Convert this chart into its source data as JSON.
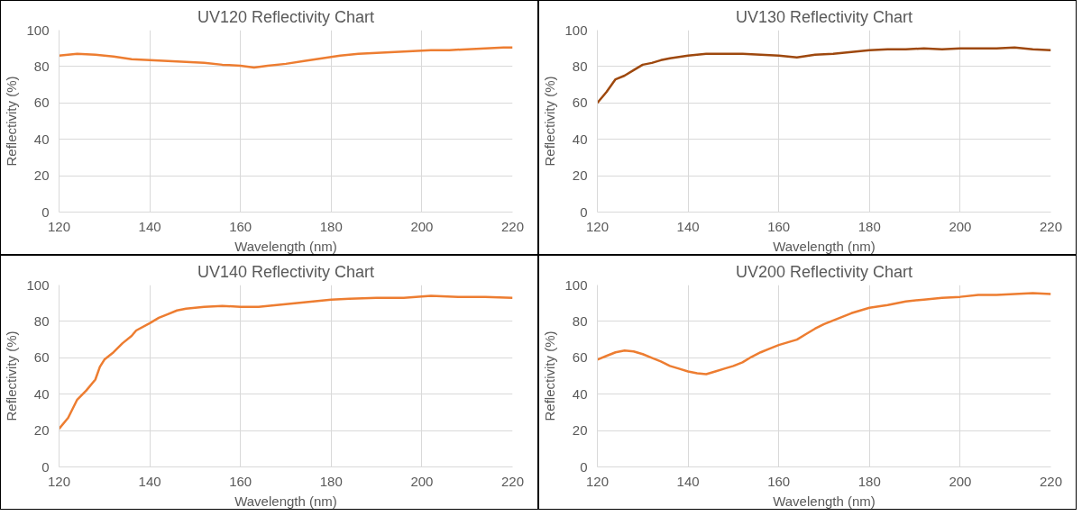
{
  "chart_data": [
    {
      "type": "line",
      "title": "UV120 Reflectivity Chart",
      "xlabel": "Wavelength (nm)",
      "ylabel": "Reflectivity (%)",
      "xlim": [
        120,
        220
      ],
      "xticks": [
        120,
        140,
        160,
        180,
        200,
        220
      ],
      "ylim": [
        0,
        100
      ],
      "yticks": [
        0,
        20,
        40,
        60,
        80,
        100
      ],
      "grid": true,
      "x": [
        120,
        124,
        128,
        132,
        136,
        140,
        144,
        148,
        152,
        156,
        160,
        163,
        166,
        170,
        174,
        178,
        182,
        186,
        190,
        194,
        198,
        202,
        206,
        210,
        214,
        218,
        220
      ],
      "series": [
        {
          "color": "#ed7d31",
          "values": [
            86,
            87,
            86.5,
            85.5,
            84,
            83.5,
            83,
            82.5,
            82,
            81,
            80.5,
            79.5,
            80.5,
            81.5,
            83,
            84.5,
            86,
            87,
            87.5,
            88,
            88.5,
            89,
            89,
            89.5,
            90,
            90.5,
            90.5
          ]
        }
      ]
    },
    {
      "type": "line",
      "title": "UV130 Reflectivity Chart",
      "xlabel": "Wavelength (nm)",
      "ylabel": "Reflectivity (%)",
      "xlim": [
        120,
        220
      ],
      "xticks": [
        120,
        140,
        160,
        180,
        200,
        220
      ],
      "ylim": [
        0,
        100
      ],
      "yticks": [
        0,
        20,
        40,
        60,
        80,
        100
      ],
      "grid": true,
      "x": [
        120,
        122,
        124,
        126,
        128,
        130,
        132,
        134,
        136,
        140,
        144,
        148,
        152,
        156,
        160,
        164,
        168,
        172,
        176,
        180,
        184,
        188,
        192,
        196,
        200,
        204,
        208,
        212,
        216,
        220
      ],
      "series": [
        {
          "color": "#9e480e",
          "values": [
            60,
            66,
            73,
            75,
            78,
            81,
            82,
            83.5,
            84.5,
            86,
            87,
            87,
            87,
            86.5,
            86,
            85,
            86.5,
            87,
            88,
            89,
            89.5,
            89.5,
            90,
            89.5,
            90,
            90,
            90,
            90.5,
            89.5,
            89
          ]
        }
      ]
    },
    {
      "type": "line",
      "title": "UV140 Reflectivity Chart",
      "xlabel": "Wavelength (nm)",
      "ylabel": "Reflectivity (%)",
      "xlim": [
        120,
        220
      ],
      "xticks": [
        120,
        140,
        160,
        180,
        200,
        220
      ],
      "ylim": [
        0,
        100
      ],
      "yticks": [
        0,
        20,
        40,
        60,
        80,
        100
      ],
      "grid": true,
      "x": [
        120,
        122,
        124,
        126,
        128,
        129,
        130,
        132,
        134,
        136,
        137,
        140,
        142,
        144,
        146,
        148,
        152,
        156,
        160,
        164,
        168,
        172,
        176,
        180,
        184,
        190,
        196,
        202,
        208,
        214,
        220
      ],
      "series": [
        {
          "color": "#ed7d31",
          "values": [
            21,
            27,
            37,
            42,
            48,
            55,
            59,
            63,
            68,
            72,
            75,
            79,
            82,
            84,
            86,
            87,
            88,
            88.5,
            88,
            88,
            89,
            90,
            91,
            92,
            92.5,
            93,
            93,
            94,
            93.5,
            93.5,
            93
          ]
        }
      ]
    },
    {
      "type": "line",
      "title": "UV200 Reflectivity Chart",
      "xlabel": "Wavelength (nm)",
      "ylabel": "Reflectivity (%)",
      "xlim": [
        120,
        220
      ],
      "xticks": [
        120,
        140,
        160,
        180,
        200,
        220
      ],
      "ylim": [
        0,
        100
      ],
      "yticks": [
        0,
        20,
        40,
        60,
        80,
        100
      ],
      "grid": true,
      "x": [
        120,
        122,
        124,
        126,
        128,
        130,
        132,
        134,
        136,
        138,
        140,
        142,
        144,
        146,
        148,
        150,
        152,
        154,
        156,
        158,
        160,
        162,
        164,
        166,
        168,
        170,
        172,
        174,
        176,
        178,
        180,
        184,
        188,
        192,
        196,
        200,
        204,
        208,
        212,
        216,
        220
      ],
      "series": [
        {
          "color": "#ed7d31",
          "values": [
            59,
            61,
            63,
            64,
            63.5,
            62,
            60,
            58,
            55.5,
            54,
            52.5,
            51.5,
            51,
            52.5,
            54,
            55.5,
            57.5,
            60.5,
            63,
            65,
            67,
            68.5,
            70,
            73,
            76,
            78.5,
            80.5,
            82.5,
            84.5,
            86,
            87.5,
            89,
            91,
            92,
            93,
            93.5,
            94.5,
            94.5,
            95,
            95.5,
            95
          ]
        }
      ]
    }
  ]
}
